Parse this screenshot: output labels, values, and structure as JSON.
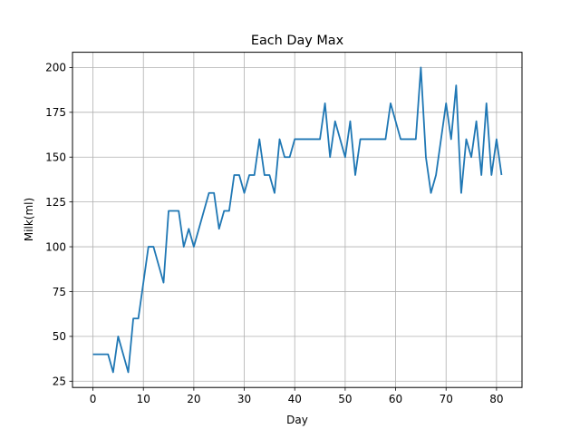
{
  "chart_data": {
    "type": "line",
    "title": "Each Day Max",
    "xlabel": "Day",
    "ylabel": "Milk(ml)",
    "xlim": [
      -4.05,
      85.05
    ],
    "ylim": [
      21.5,
      208.5
    ],
    "xticks": [
      0,
      10,
      20,
      30,
      40,
      50,
      60,
      70,
      80
    ],
    "yticks": [
      25,
      50,
      75,
      100,
      125,
      150,
      175,
      200
    ],
    "grid": true,
    "legend": null,
    "series": [
      {
        "name": "Each Day Max",
        "color": "#1f77b4",
        "x": [
          0,
          1,
          2,
          3,
          4,
          5,
          6,
          7,
          8,
          9,
          10,
          11,
          12,
          13,
          14,
          15,
          16,
          17,
          18,
          19,
          20,
          21,
          22,
          23,
          24,
          25,
          26,
          27,
          28,
          29,
          30,
          31,
          32,
          33,
          34,
          35,
          36,
          37,
          38,
          39,
          40,
          41,
          42,
          43,
          44,
          45,
          46,
          47,
          48,
          49,
          50,
          51,
          52,
          53,
          54,
          55,
          56,
          57,
          58,
          59,
          60,
          61,
          62,
          63,
          64,
          65,
          66,
          67,
          68,
          69,
          70,
          71,
          72,
          73,
          74,
          75,
          76,
          77,
          78,
          79,
          80,
          81
        ],
        "values": [
          40,
          40,
          40,
          40,
          30,
          50,
          40,
          30,
          60,
          60,
          80,
          100,
          100,
          90,
          80,
          120,
          120,
          120,
          100,
          110,
          100,
          110,
          120,
          130,
          130,
          110,
          120,
          120,
          140,
          140,
          130,
          140,
          140,
          160,
          140,
          140,
          130,
          160,
          150,
          150,
          160,
          160,
          160,
          160,
          160,
          160,
          180,
          150,
          170,
          160,
          150,
          170,
          140,
          160,
          160,
          160,
          160,
          160,
          160,
          180,
          170,
          160,
          160,
          160,
          160,
          200,
          150,
          130,
          140,
          160,
          180,
          160,
          190,
          130,
          160,
          150,
          170,
          140,
          180,
          140,
          160,
          140
        ]
      }
    ]
  },
  "labels": {
    "title": "Each Day Max",
    "xlabel": "Day",
    "ylabel": "Milk(ml)"
  }
}
